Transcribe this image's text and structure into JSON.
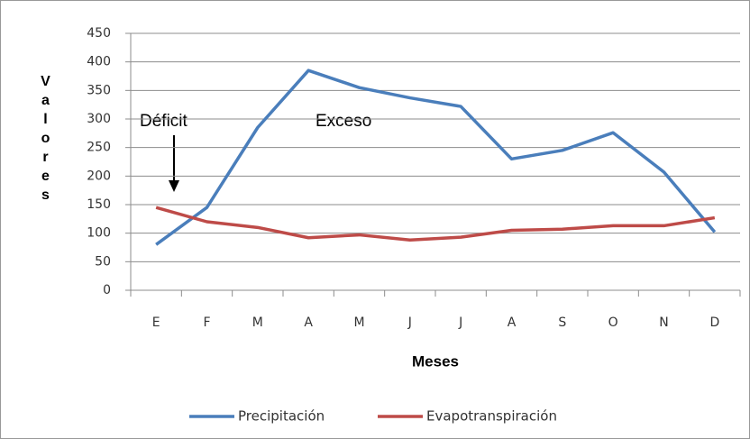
{
  "chart_data": {
    "type": "line",
    "categories": [
      "E",
      "F",
      "M",
      "A",
      "M",
      "J",
      "J",
      "A",
      "S",
      "O",
      "N",
      "D"
    ],
    "series": [
      {
        "name": "Precipitación",
        "color": "#4a7ebb",
        "values": [
          80,
          145,
          285,
          385,
          355,
          337,
          322,
          230,
          245,
          276,
          207,
          102
        ]
      },
      {
        "name": "Evapotranspiración",
        "color": "#be4b48",
        "values": [
          145,
          120,
          110,
          92,
          97,
          88,
          93,
          105,
          107,
          113,
          113,
          127
        ]
      }
    ],
    "xlabel": "Meses",
    "ylabel": "Valores",
    "annotations": [
      "Déficit",
      "Exceso"
    ],
    "ylim": [
      0,
      450
    ],
    "yticks": [
      0,
      50,
      100,
      150,
      200,
      250,
      300,
      350,
      400,
      450
    ],
    "grid": true,
    "legend": "bottom"
  }
}
